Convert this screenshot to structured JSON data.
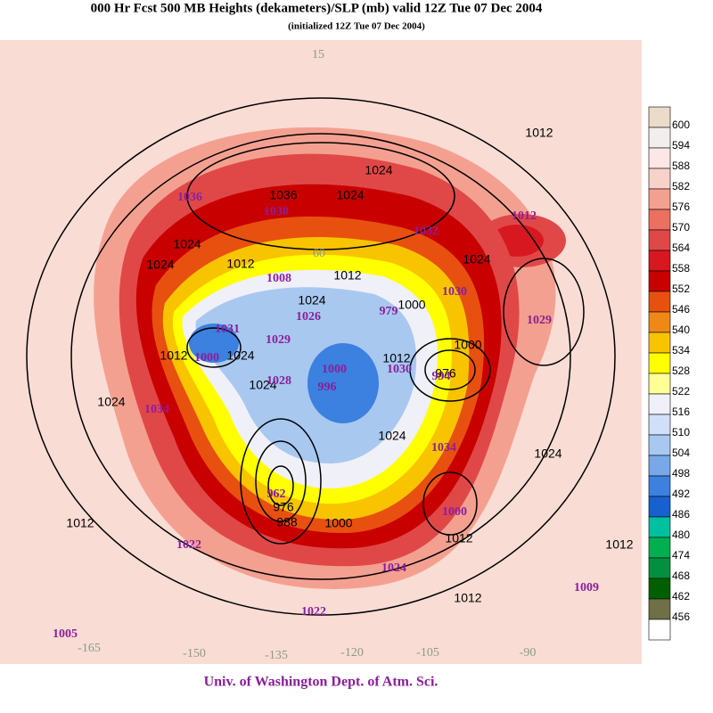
{
  "header": {
    "title": "000 Hr Fcst 500 MB Heights (dekameters)/SLP (mb) valid 12Z Tue 07 Dec 2004",
    "subtitle": "(initialized 12Z  Tue 07 Dec 2004)"
  },
  "colorbar": {
    "levels": [
      600,
      594,
      588,
      582,
      576,
      570,
      564,
      558,
      552,
      546,
      540,
      534,
      528,
      522,
      516,
      510,
      504,
      498,
      492,
      486,
      480,
      474,
      468,
      462,
      456
    ],
    "colors": [
      "#eadcc8",
      "#f2eeee",
      "#fce6e6",
      "#f8d2c8",
      "#f4a090",
      "#ec7060",
      "#e04848",
      "#d81820",
      "#c80000",
      "#e85010",
      "#f08818",
      "#f8c400",
      "#ffff00",
      "#ffff98",
      "#f0f0f8",
      "#d0e0f8",
      "#a8c8f0",
      "#78a8e8",
      "#3c80e0",
      "#1860d0",
      "#00c0a0",
      "#00b050",
      "#009040",
      "#006000",
      "#707048",
      "#ffffff"
    ]
  },
  "map": {
    "pressure_labels": [
      1012,
      1024,
      1036,
      1024,
      1024,
      1024,
      1012,
      1012,
      1024,
      1000,
      1024,
      1000,
      1012,
      1024,
      1012,
      1024,
      976,
      1024,
      1024,
      1024,
      976,
      988,
      1000,
      1012,
      1012,
      1012,
      1012
    ],
    "center_labels": [
      1036,
      1038,
      1032,
      1012,
      1008,
      1030,
      979,
      1029,
      1026,
      1031,
      1029,
      1000,
      1028,
      1000,
      996,
      1030,
      994,
      1034,
      1034,
      962,
      1000,
      1022,
      1024,
      1022,
      1009,
      1005
    ],
    "longitude_labels": [
      15,
      60,
      -165,
      -150,
      -135,
      -120,
      -105,
      -90
    ]
  },
  "footer": "Univ. of Washington Dept. of Atm. Sci."
}
